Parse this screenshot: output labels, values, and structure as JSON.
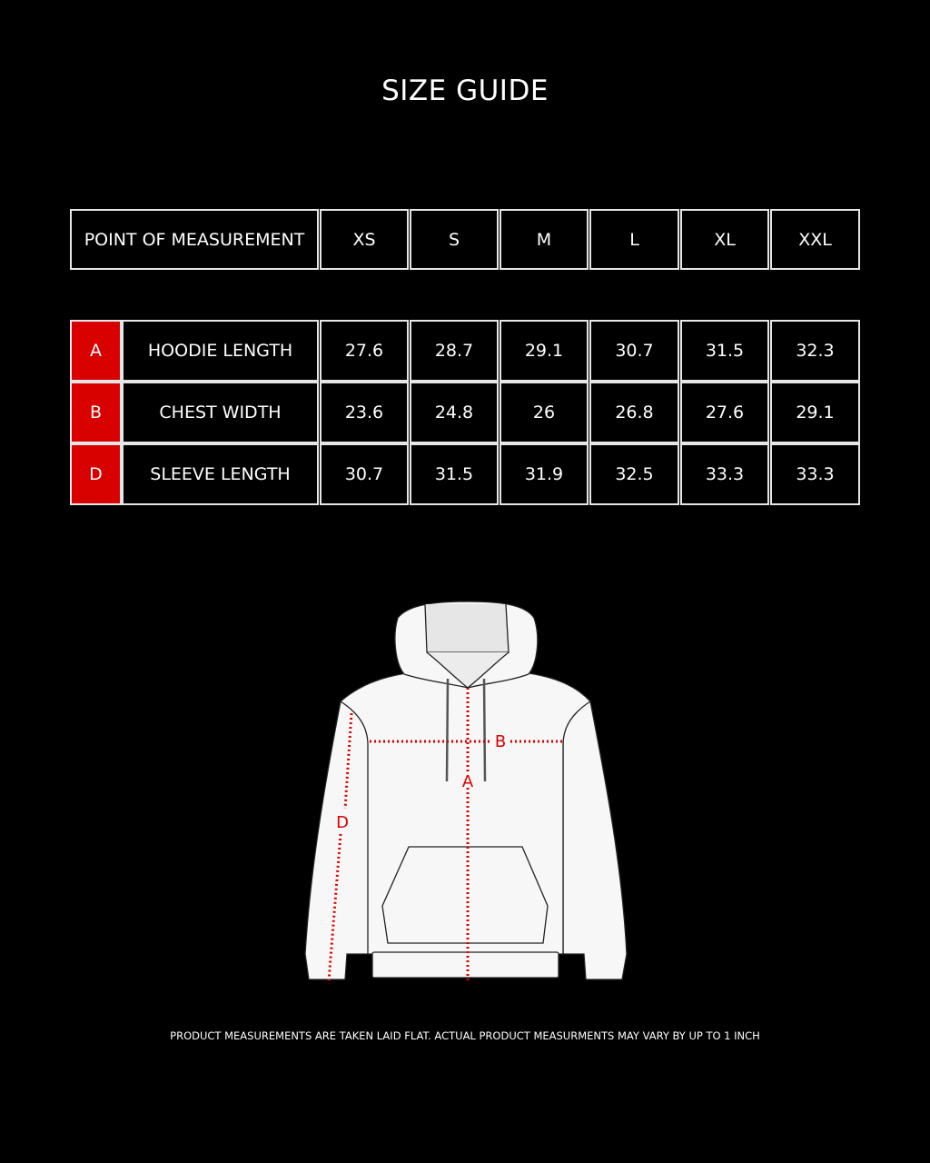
{
  "title": "SIZE GUIDE",
  "table": {
    "header_label": "POINT OF MEASUREMENT",
    "sizes": [
      "XS",
      "S",
      "M",
      "L",
      "XL",
      "XXL"
    ],
    "rows": [
      {
        "key": "A",
        "label": "HOODIE LENGTH",
        "values": [
          "27.6",
          "28.7",
          "29.1",
          "30.7",
          "31.5",
          "32.3"
        ]
      },
      {
        "key": "B",
        "label": "CHEST WIDTH",
        "values": [
          "23.6",
          "24.8",
          "26",
          "26.8",
          "27.6",
          "29.1"
        ]
      },
      {
        "key": "D",
        "label": "SLEEVE LENGTH",
        "values": [
          "30.7",
          "31.5",
          "31.9",
          "32.5",
          "33.3",
          "33.3"
        ]
      }
    ]
  },
  "diagram": {
    "labels": {
      "a": "A",
      "b": "B",
      "d": "D"
    },
    "marker_color": "#d90000"
  },
  "footnote": "PRODUCT MEASUREMENTS ARE TAKEN LAID FLAT. ACTUAL PRODUCT MEASURMENTS MAY VARY BY UP TO 1 INCH"
}
